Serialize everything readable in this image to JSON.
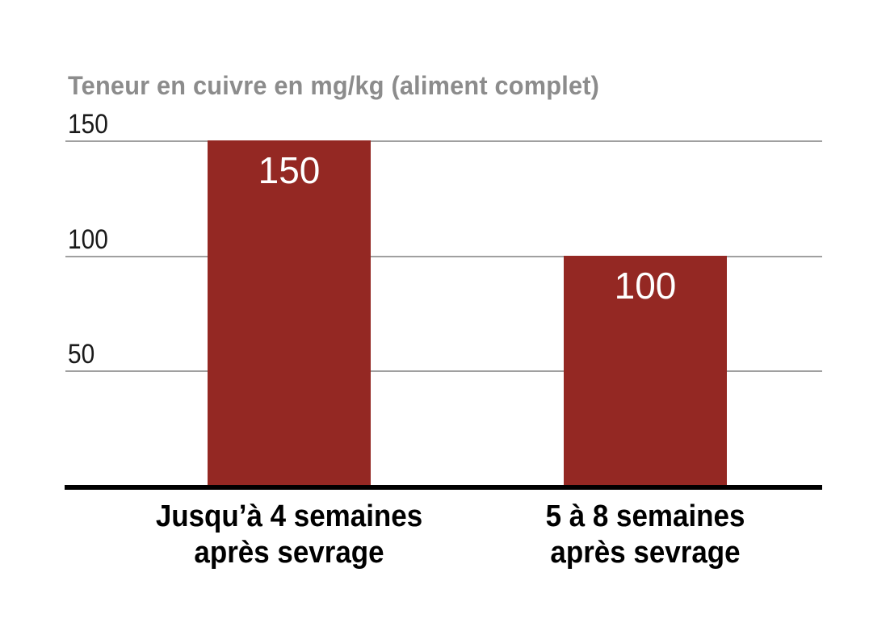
{
  "page": {
    "background": "#ffffff"
  },
  "chart_data": {
    "type": "bar",
    "title": "Teneur en cuivre en mg/kg (aliment complet)",
    "categories": [
      "Jusqu’à 4 semaines après sevrage",
      "5 à 8 semaines après sevrage"
    ],
    "category_lines": [
      [
        "Jusqu’à 4 semaines",
        "après sevrage"
      ],
      [
        "5 à 8 semaines",
        "après sevrage"
      ]
    ],
    "values": [
      150,
      100
    ],
    "bar_labels": [
      "150",
      "100"
    ],
    "yticks": [
      150,
      100,
      50
    ],
    "ytick_labels": [
      "150",
      "100",
      "50"
    ],
    "ylim": [
      0,
      150
    ],
    "xlabel": "",
    "ylabel": "",
    "grid": true,
    "legend": false,
    "legend_position": "none",
    "colors": {
      "bar": "#942823",
      "title_text": "#8c8c8c",
      "gridline": "#a0a0a0",
      "axis_line": "#000000",
      "bar_label_text": "#ffffff",
      "tick_text": "#1a1a1a",
      "category_text": "#000000"
    }
  }
}
